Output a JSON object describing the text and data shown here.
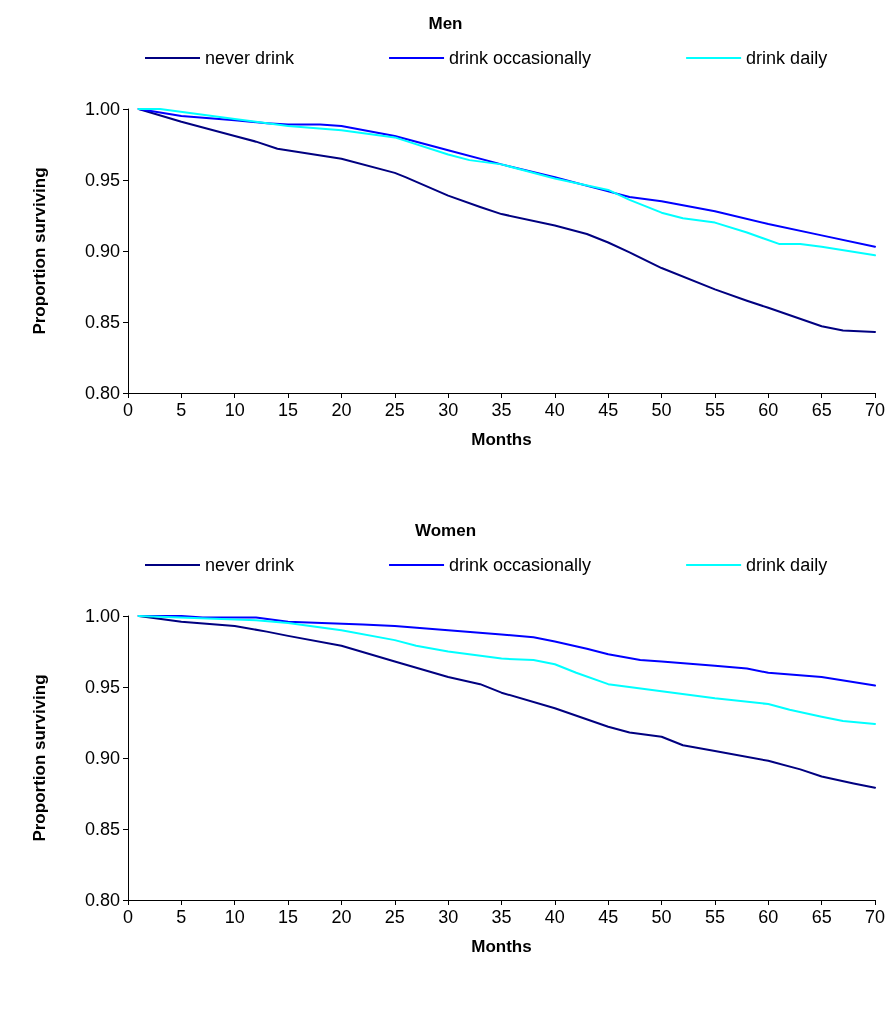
{
  "chart_data": [
    {
      "type": "line",
      "title": "Men",
      "xlabel": "Months",
      "ylabel": "Proportion surviving",
      "xlim": [
        0,
        70
      ],
      "xticks": [
        0,
        5,
        10,
        15,
        20,
        25,
        30,
        35,
        40,
        45,
        50,
        55,
        60,
        65,
        70
      ],
      "ylim": [
        0.8,
        1.0
      ],
      "yticks": [
        {
          "value": 0.8,
          "label": "0.80"
        },
        {
          "value": 0.85,
          "label": "0.85"
        },
        {
          "value": 0.9,
          "label": "0.90"
        },
        {
          "value": 0.95,
          "label": "0.95"
        },
        {
          "value": 1.0,
          "label": "1.00"
        }
      ],
      "grid": false,
      "legend": "top",
      "marker": "none",
      "line_style": "solid",
      "series": [
        {
          "name": "never drink",
          "color": "#000080",
          "x": [
            1,
            5,
            10,
            12,
            14,
            20,
            25,
            26,
            30,
            33,
            35,
            40,
            43,
            45,
            47,
            50,
            55,
            58,
            60,
            65,
            67,
            70
          ],
          "values": [
            1.0,
            0.991,
            0.981,
            0.977,
            0.972,
            0.965,
            0.955,
            0.952,
            0.939,
            0.931,
            0.926,
            0.918,
            0.912,
            0.906,
            0.899,
            0.888,
            0.873,
            0.865,
            0.86,
            0.847,
            0.844,
            0.843
          ]
        },
        {
          "name": "drink occasionally",
          "color": "#0000ff",
          "x": [
            1,
            5,
            10,
            13,
            15,
            18,
            20,
            25,
            30,
            35,
            40,
            45,
            47,
            50,
            55,
            60,
            65,
            70
          ],
          "values": [
            1.0,
            0.995,
            0.992,
            0.99,
            0.989,
            0.989,
            0.988,
            0.981,
            0.971,
            0.961,
            0.952,
            0.942,
            0.938,
            0.935,
            0.928,
            0.919,
            0.911,
            0.903
          ]
        },
        {
          "name": "drink daily",
          "color": "#00ffff",
          "x": [
            1,
            3,
            10,
            15,
            20,
            25,
            30,
            32,
            35,
            40,
            45,
            47,
            50,
            52,
            55,
            58,
            61,
            63,
            65,
            70
          ],
          "values": [
            1.0,
            1.0,
            0.993,
            0.988,
            0.985,
            0.98,
            0.968,
            0.964,
            0.961,
            0.951,
            0.943,
            0.936,
            0.927,
            0.923,
            0.92,
            0.913,
            0.905,
            0.905,
            0.903,
            0.897
          ]
        }
      ]
    },
    {
      "type": "line",
      "title": "Women",
      "xlabel": "Months",
      "ylabel": "Proportion surviving",
      "xlim": [
        0,
        70
      ],
      "xticks": [
        0,
        5,
        10,
        15,
        20,
        25,
        30,
        35,
        40,
        45,
        50,
        55,
        60,
        65,
        70
      ],
      "ylim": [
        0.8,
        1.0
      ],
      "yticks": [
        {
          "value": 0.8,
          "label": "0.80"
        },
        {
          "value": 0.85,
          "label": "0.85"
        },
        {
          "value": 0.9,
          "label": "0.90"
        },
        {
          "value": 0.95,
          "label": "0.95"
        },
        {
          "value": 1.0,
          "label": "1.00"
        }
      ],
      "grid": false,
      "legend": "top",
      "marker": "none",
      "line_style": "solid",
      "series": [
        {
          "name": "never drink",
          "color": "#000080",
          "x": [
            1,
            5,
            10,
            13,
            15,
            20,
            25,
            30,
            33,
            35,
            40,
            45,
            47,
            50,
            52,
            55,
            60,
            63,
            65,
            68,
            70
          ],
          "values": [
            1.0,
            0.996,
            0.993,
            0.989,
            0.986,
            0.979,
            0.968,
            0.957,
            0.952,
            0.946,
            0.935,
            0.922,
            0.918,
            0.915,
            0.909,
            0.905,
            0.898,
            0.892,
            0.887,
            0.882,
            0.879
          ]
        },
        {
          "name": "drink occasionally",
          "color": "#0000ff",
          "x": [
            1,
            5,
            7,
            12,
            15,
            22,
            25,
            30,
            35,
            38,
            40,
            43,
            45,
            48,
            50,
            55,
            58,
            60,
            65,
            70
          ],
          "values": [
            1.0,
            1.0,
            0.999,
            0.999,
            0.996,
            0.994,
            0.993,
            0.99,
            0.987,
            0.985,
            0.982,
            0.977,
            0.973,
            0.969,
            0.968,
            0.965,
            0.963,
            0.96,
            0.957,
            0.951
          ]
        },
        {
          "name": "drink daily",
          "color": "#00ffff",
          "x": [
            1,
            12,
            15,
            20,
            25,
            27,
            30,
            35,
            38,
            40,
            42,
            45,
            50,
            55,
            60,
            62,
            65,
            67,
            70
          ],
          "values": [
            1.0,
            0.997,
            0.995,
            0.99,
            0.983,
            0.979,
            0.975,
            0.97,
            0.969,
            0.966,
            0.96,
            0.952,
            0.947,
            0.942,
            0.938,
            0.934,
            0.929,
            0.926,
            0.924
          ]
        }
      ]
    }
  ]
}
